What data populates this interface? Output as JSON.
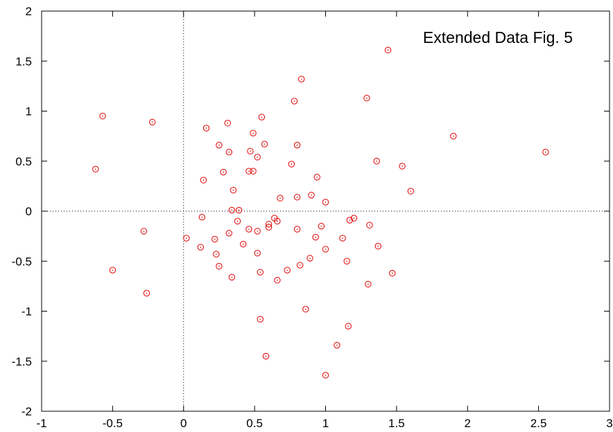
{
  "chart_data": {
    "type": "scatter",
    "title": "Extended Data Fig. 5",
    "xlabel": "",
    "ylabel": "",
    "xlim": [
      -1,
      3
    ],
    "ylim": [
      -2,
      2
    ],
    "x_ticks": [
      -1,
      -0.5,
      0,
      0.5,
      1,
      1.5,
      2,
      2.5,
      3
    ],
    "y_ticks": [
      -2,
      -1.5,
      -1,
      -0.5,
      0,
      0.5,
      1,
      1.5,
      2
    ],
    "x_tick_labels": [
      "-1",
      "-0.5",
      "0",
      "0.5",
      "1",
      "1.5",
      "2",
      "2.5",
      "3"
    ],
    "y_tick_labels": [
      "-2",
      "-1.5",
      "-1",
      "-0.5",
      "0",
      "0.5",
      "1",
      "1.5",
      "2"
    ],
    "grid": false,
    "reference_lines": {
      "x": 0,
      "y": 0,
      "style": "dotted"
    },
    "marker": "open-circle",
    "colors": {
      "points": "#e00000",
      "axes": "#000000"
    },
    "series": [
      {
        "points": [
          [
            -0.57,
            0.95
          ],
          [
            -0.22,
            0.89
          ],
          [
            -0.62,
            0.42
          ],
          [
            -0.28,
            -0.2
          ],
          [
            -0.5,
            -0.59
          ],
          [
            -0.26,
            -0.82
          ],
          [
            0.16,
            0.83
          ],
          [
            0.31,
            0.88
          ],
          [
            0.25,
            0.66
          ],
          [
            0.32,
            0.59
          ],
          [
            0.28,
            0.39
          ],
          [
            0.14,
            0.31
          ],
          [
            0.55,
            0.94
          ],
          [
            0.49,
            0.78
          ],
          [
            0.47,
            0.6
          ],
          [
            0.57,
            0.67
          ],
          [
            0.52,
            0.54
          ],
          [
            0.46,
            0.4
          ],
          [
            0.49,
            0.4
          ],
          [
            0.35,
            0.21
          ],
          [
            0.34,
            0.01
          ],
          [
            0.39,
            0.01
          ],
          [
            0.38,
            -0.1
          ],
          [
            0.13,
            -0.06
          ],
          [
            0.02,
            -0.27
          ],
          [
            0.22,
            -0.28
          ],
          [
            0.32,
            -0.22
          ],
          [
            0.12,
            -0.36
          ],
          [
            0.23,
            -0.43
          ],
          [
            0.25,
            -0.55
          ],
          [
            0.34,
            -0.66
          ],
          [
            0.42,
            -0.33
          ],
          [
            0.46,
            -0.18
          ],
          [
            0.52,
            -0.2
          ],
          [
            0.52,
            -0.42
          ],
          [
            0.54,
            -0.61
          ],
          [
            0.6,
            -0.13
          ],
          [
            0.6,
            -0.16
          ],
          [
            0.64,
            -0.07
          ],
          [
            0.66,
            -0.1
          ],
          [
            0.66,
            -0.69
          ],
          [
            0.54,
            -1.08
          ],
          [
            0.58,
            -1.45
          ],
          [
            0.78,
            1.1
          ],
          [
            0.83,
            1.32
          ],
          [
            0.8,
            0.66
          ],
          [
            0.76,
            0.47
          ],
          [
            0.68,
            0.13
          ],
          [
            0.8,
            0.14
          ],
          [
            0.9,
            0.16
          ],
          [
            0.94,
            0.34
          ],
          [
            1.0,
            0.09
          ],
          [
            0.8,
            -0.18
          ],
          [
            0.97,
            -0.15
          ],
          [
            0.93,
            -0.26
          ],
          [
            1.0,
            -0.38
          ],
          [
            0.89,
            -0.47
          ],
          [
            0.82,
            -0.54
          ],
          [
            0.73,
            -0.59
          ],
          [
            0.86,
            -0.98
          ],
          [
            1.0,
            -1.64
          ],
          [
            1.08,
            -1.34
          ],
          [
            1.16,
            -1.15
          ],
          [
            1.15,
            -0.5
          ],
          [
            1.12,
            -0.27
          ],
          [
            1.17,
            -0.09
          ],
          [
            1.2,
            -0.07
          ],
          [
            1.31,
            -0.14
          ],
          [
            1.37,
            -0.35
          ],
          [
            1.3,
            -0.73
          ],
          [
            1.47,
            -0.62
          ],
          [
            1.29,
            1.13
          ],
          [
            1.44,
            1.61
          ],
          [
            1.36,
            0.5
          ],
          [
            1.54,
            0.45
          ],
          [
            1.6,
            0.2
          ],
          [
            1.9,
            0.75
          ],
          [
            2.55,
            0.59
          ]
        ]
      }
    ]
  }
}
